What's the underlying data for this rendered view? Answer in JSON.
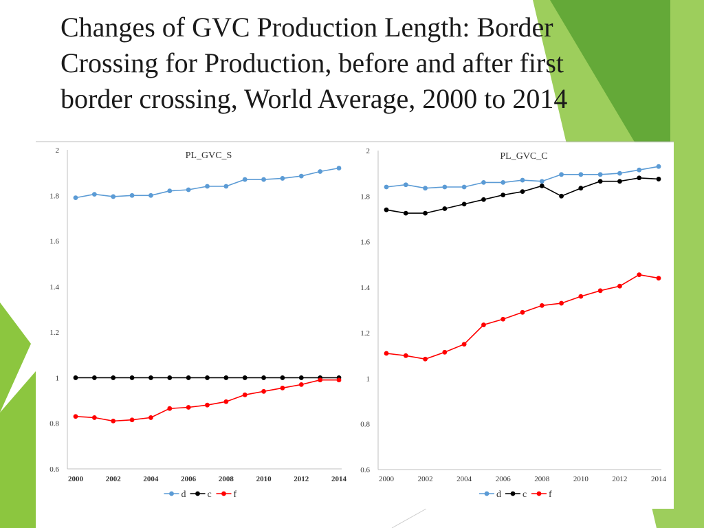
{
  "title_lines": [
    "Changes of GVC Production Length: Border",
    "Crossing for Production, before  and after first",
    "border crossing, World Average, 2000 to 2014"
  ],
  "colors": {
    "d": "#5b9bd5",
    "c": "#000000",
    "f": "#ff0000",
    "accent_green": "#8cc63f",
    "accent_dark": "#5ea534"
  },
  "chart_data": [
    {
      "type": "line",
      "title": "PL_GVC_S",
      "x": [
        2000,
        2001,
        2002,
        2003,
        2004,
        2005,
        2006,
        2007,
        2008,
        2009,
        2010,
        2011,
        2012,
        2013,
        2014
      ],
      "xticks": [
        "2000",
        "2002",
        "2004",
        "2006",
        "2008",
        "2010",
        "2012",
        "2014"
      ],
      "yticks": [
        "0.6",
        "0.8",
        "1",
        "1.2",
        "1.4",
        "1.6",
        "1.8",
        "2"
      ],
      "ylim": [
        0.6,
        2.0
      ],
      "series": [
        {
          "name": "d",
          "values": [
            1.79,
            1.805,
            1.795,
            1.8,
            1.8,
            1.82,
            1.825,
            1.84,
            1.84,
            1.87,
            1.87,
            1.875,
            1.885,
            1.905,
            1.92
          ]
        },
        {
          "name": "c",
          "values": [
            1,
            1,
            1,
            1,
            1,
            1,
            1,
            1,
            1,
            1,
            1,
            1,
            1,
            1,
            1
          ]
        },
        {
          "name": "f",
          "values": [
            0.83,
            0.825,
            0.81,
            0.815,
            0.825,
            0.865,
            0.87,
            0.88,
            0.895,
            0.925,
            0.94,
            0.955,
            0.97,
            0.99,
            0.99
          ]
        }
      ]
    },
    {
      "type": "line",
      "title": "PL_GVC_C",
      "x": [
        2000,
        2001,
        2002,
        2003,
        2004,
        2005,
        2006,
        2007,
        2008,
        2009,
        2010,
        2011,
        2012,
        2013,
        2014
      ],
      "xticks": [
        "2000",
        "2002",
        "2004",
        "2006",
        "2008",
        "2010",
        "2012",
        "2014"
      ],
      "yticks": [
        "0.6",
        "0.8",
        "1",
        "1.2",
        "1.4",
        "1.6",
        "1.8",
        "2"
      ],
      "ylim": [
        0.6,
        2.0
      ],
      "series": [
        {
          "name": "d",
          "values": [
            1.84,
            1.85,
            1.835,
            1.84,
            1.84,
            1.86,
            1.86,
            1.87,
            1.865,
            1.895,
            1.895,
            1.895,
            1.9,
            1.915,
            1.93
          ]
        },
        {
          "name": "c",
          "values": [
            1.74,
            1.725,
            1.725,
            1.745,
            1.765,
            1.785,
            1.805,
            1.82,
            1.845,
            1.8,
            1.835,
            1.865,
            1.865,
            1.88,
            1.875
          ]
        },
        {
          "name": "f",
          "values": [
            1.11,
            1.1,
            1.085,
            1.115,
            1.15,
            1.235,
            1.26,
            1.29,
            1.32,
            1.33,
            1.36,
            1.385,
            1.405,
            1.455,
            1.44
          ]
        }
      ]
    }
  ]
}
